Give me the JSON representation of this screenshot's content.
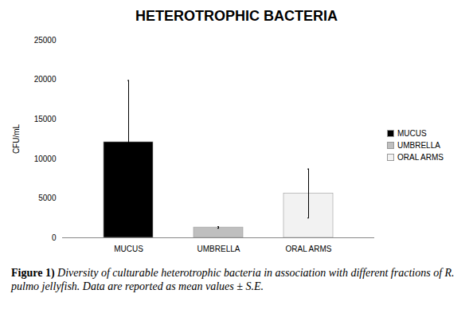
{
  "chart_data": {
    "type": "bar",
    "title": "HETEROTROPHIC BACTERIA",
    "ylabel": "CFU/mL",
    "categories": [
      "MUCUS",
      "UMBRELLA",
      "ORAL ARMS"
    ],
    "values": [
      12100,
      1300,
      5600
    ],
    "errors": [
      7800,
      100,
      3100
    ],
    "colors": [
      "#000000",
      "#bfbfbf",
      "#f2f2f2"
    ],
    "ylim": [
      0,
      25000
    ],
    "yticks": [
      0,
      5000,
      10000,
      15000,
      20000,
      25000
    ],
    "grid": false,
    "legend": "right",
    "figure_label": "Figure 1)",
    "caption": "Diversity of culturable heterotrophic bacteria in association with different fractions of R. pulmo jellyfish. Data are reported as mean values ± S.E."
  }
}
